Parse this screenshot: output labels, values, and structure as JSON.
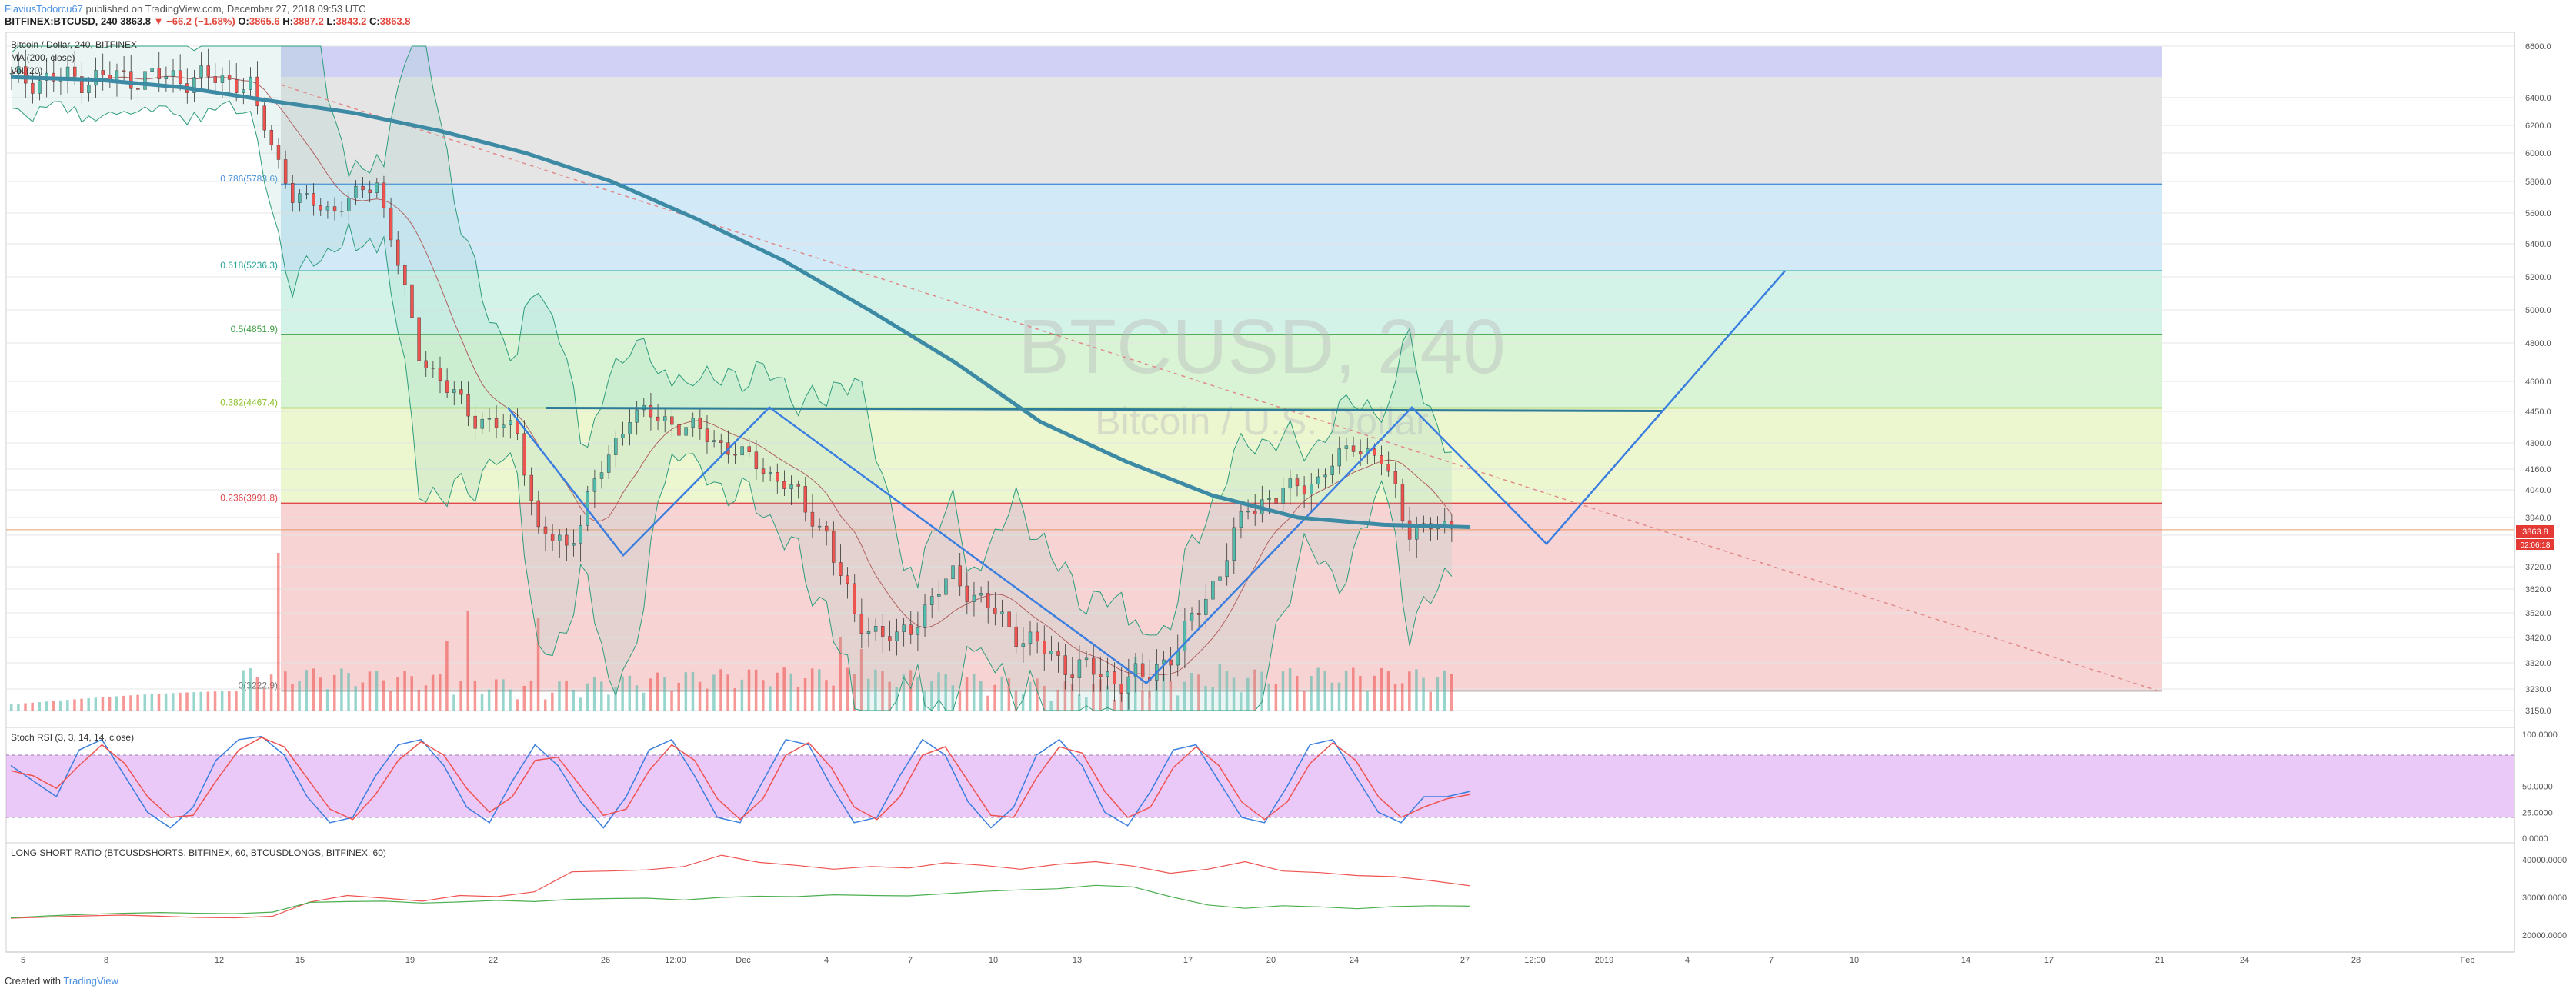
{
  "header": {
    "author": "FlaviusTodorcu67",
    "published": "published on TradingView.com, December 27, 2018 09:53 UTC",
    "symbol": "BITFINEX:BTCUSD, 240",
    "last": "3863.8",
    "change": "▼ −66.2 (−1.68%)",
    "o_label": "O:",
    "o_value": "3865.6",
    "h_label": "H:",
    "h_value": "3887.2",
    "l_label": "L:",
    "l_value": "3843.2",
    "c_label": "C:",
    "c_value": "3863.8"
  },
  "legend": {
    "instrument": "Bitcoin / Dollar, 240, BITFINEX",
    "ma": "MA (200, close)",
    "vol": "Vol (20)"
  },
  "watermark": {
    "symbol": "BTCUSD, 240",
    "name": "Bitcoin / U.S. Dollar"
  },
  "stoch_title": "Stoch RSI (3, 3, 14, 14, close)",
  "ls_title": "LONG SHORT RATIO (BTCUSDSHORTS, BITFINEX, 60, BTCUSDLONGS, BITFINEX, 60)",
  "price_badge": {
    "value": "3863.8",
    "countdown": "02:06:18"
  },
  "footer": {
    "prefix": "Created with",
    "brand": "TradingView"
  },
  "colors": {
    "up": "#53b9ab",
    "down": "#ef5350",
    "ma200": "#3d8aa5",
    "pattern": "#3a7ee0",
    "bollinger": "#2e9c7c",
    "trend": "#e08a8a",
    "stoch_k": "#3a7ee0",
    "stoch_d": "#ef5350",
    "ls_red": "#ef5350",
    "ls_green": "#4caf50"
  },
  "chart_data": [
    {
      "type": "line",
      "title": "Bitcoin / Dollar, 240, BITFINEX",
      "yticks": [
        6600,
        6400,
        6200,
        6000,
        5800,
        5600,
        5400,
        5200,
        5000,
        4800,
        4600,
        4450,
        4300,
        4160,
        4040,
        3940,
        3830,
        3720,
        3620,
        3520,
        3420,
        3320,
        3230,
        3150
      ],
      "ytick_labels": [
        "6600.0",
        "6400.0",
        "6200.0",
        "6000.0",
        "5800.0",
        "5600.0",
        "5400.0",
        "5200.0",
        "5000.0",
        "4800.0",
        "4600.0",
        "4450.0",
        "4300.0",
        "4160.0",
        "4040.0",
        "3940.0",
        "3830.0",
        "3720.0",
        "3620.0",
        "3520.0",
        "3420.0",
        "3320.0",
        "3230.0",
        "3150.0"
      ],
      "fib_levels": [
        {
          "label": "0.786(5783.6)",
          "value": 5783.6,
          "color": "#4a90d9"
        },
        {
          "label": "0.618(5236.3)",
          "value": 5236.3,
          "color": "#26a69a"
        },
        {
          "label": "0.5(4851.9)",
          "value": 4851.9,
          "color": "#43a047"
        },
        {
          "label": "0.382(4467.4)",
          "value": 4467.4,
          "color": "#8bbf2a"
        },
        {
          "label": "0.236(3991.8)",
          "value": 3991.8,
          "color": "#e0474c"
        },
        {
          "label": "0(3222.9)",
          "value": 3222.9,
          "color": "#777777"
        }
      ],
      "series": [
        {
          "name": "MA (200, close)",
          "values": [
            6480,
            6470,
            6440,
            6380,
            6290,
            6160,
            6000,
            5800,
            5560,
            5300,
            5000,
            4700,
            4400,
            4200,
            4020,
            3940,
            3895,
            3880
          ]
        }
      ],
      "x_labels": [
        "5",
        "8",
        "12",
        "15",
        "19",
        "22",
        "26",
        "12:00",
        "Dec",
        "4",
        "7",
        "10",
        "13",
        "17",
        "20",
        "24",
        "27",
        "12:00",
        "2019",
        "4",
        "7",
        "10",
        "14",
        "17",
        "21",
        "24",
        "28",
        "Feb"
      ],
      "last_price": 3863.8,
      "resistance": 4467.4,
      "projection": [
        4467.4,
        3860,
        5236.3
      ]
    },
    {
      "type": "line",
      "title": "Stoch RSI (3, 3, 14, 14, close)",
      "ylim": [
        0,
        100
      ],
      "yticks": [
        100,
        50,
        25,
        0
      ],
      "ytick_labels": [
        "100.0000",
        "50.0000",
        "25.0000",
        "0.0000"
      ],
      "band": [
        20,
        80
      ],
      "series": [
        {
          "name": "K",
          "values": [
            70,
            55,
            40,
            85,
            95,
            60,
            25,
            10,
            30,
            75,
            95,
            98,
            80,
            40,
            15,
            20,
            60,
            90,
            95,
            70,
            30,
            15,
            55,
            90,
            70,
            35,
            10,
            40,
            85,
            95,
            60,
            20,
            15,
            55,
            95,
            90,
            50,
            15,
            20,
            60,
            95,
            80,
            35,
            10,
            30,
            80,
            95,
            70,
            25,
            12,
            45,
            85,
            90,
            55,
            20,
            15,
            50,
            90,
            95,
            60,
            25,
            15,
            40,
            40,
            45
          ]
        },
        {
          "name": "D",
          "values": [
            65,
            60,
            48,
            70,
            90,
            72,
            40,
            20,
            22,
            55,
            85,
            97,
            88,
            58,
            28,
            18,
            42,
            75,
            93,
            80,
            48,
            25,
            40,
            75,
            78,
            50,
            22,
            28,
            65,
            90,
            75,
            38,
            18,
            38,
            80,
            92,
            68,
            30,
            18,
            40,
            80,
            88,
            55,
            22,
            20,
            58,
            88,
            82,
            45,
            20,
            30,
            68,
            88,
            70,
            35,
            18,
            35,
            72,
            92,
            75,
            40,
            20,
            30,
            38,
            42
          ]
        }
      ]
    },
    {
      "type": "line",
      "title": "LONG SHORT RATIO (BTCUSDSHORTS, BITFINEX, 60, BTCUSDLONGS, BITFINEX, 60)",
      "yticks": [
        40000,
        30000,
        20000
      ],
      "ytick_labels": [
        "40000.0000",
        "30000.0000",
        "20000.0000"
      ],
      "series": [
        {
          "name": "BTCUSDSHORTS",
          "values": [
            24500,
            24800,
            25100,
            25300,
            25000,
            24700,
            24600,
            25000,
            28800,
            30500,
            29800,
            29000,
            30500,
            30200,
            31500,
            36800,
            37000,
            37300,
            38200,
            41200,
            39300,
            38500,
            37500,
            38200,
            37800,
            39200,
            38500,
            37500,
            38800,
            39500,
            38300,
            36400,
            37500,
            39500,
            37000,
            36600,
            35800,
            35500,
            34400,
            33100
          ]
        },
        {
          "name": "BTCUSDLONGS",
          "values": [
            24600,
            25100,
            25500,
            25800,
            26000,
            25800,
            25700,
            26100,
            28700,
            28900,
            29000,
            28500,
            28800,
            29200,
            28900,
            29500,
            29700,
            29800,
            29300,
            30000,
            30300,
            30200,
            30700,
            30500,
            30400,
            31000,
            31600,
            32000,
            32300,
            33200,
            32800,
            30200,
            28000,
            27100,
            27800,
            27500,
            27000,
            27600,
            27800,
            27700
          ]
        }
      ]
    }
  ]
}
